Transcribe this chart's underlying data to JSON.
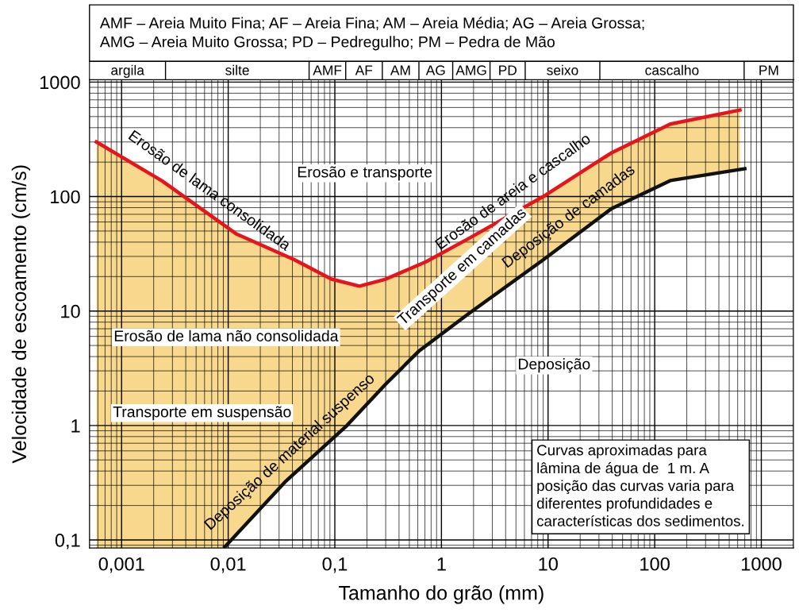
{
  "chart_data": {
    "type": "area",
    "title": "AMF – Areia Muito Fina; AF – Areia Fina; AM – Areia Média; AG – Areia Grossa;\nAMG – Areia Muito Grossa; PD – Pedregulho; PM – Pedra de Mão",
    "xlabel": "Tamanho do grão (mm)",
    "ylabel": "Velocidade de escoamento (cm/s)",
    "log": "xy",
    "grid": true,
    "marker": "none",
    "line_style": "solid",
    "xlim": [
      0.0005,
      2000
    ],
    "ylim": [
      0.085,
      1050
    ],
    "xticks": [
      {
        "value": 0.001,
        "label": "0,001"
      },
      {
        "value": 0.01,
        "label": "0,01"
      },
      {
        "value": 0.1,
        "label": "0,1"
      },
      1,
      10,
      100,
      1000
    ],
    "yticks": [
      {
        "value": 0.1,
        "label": "0,1"
      },
      1,
      10,
      100,
      1000
    ],
    "series": [
      {
        "color": "#e8141c",
        "x": [
          0.00058,
          0.0024,
          0.012,
          0.042,
          0.093,
          0.17,
          0.3,
          0.72,
          1.8,
          9,
          39,
          140,
          630
        ],
        "values": [
          300,
          137,
          47,
          28,
          19,
          16.5,
          19,
          27,
          43,
          100,
          240,
          430,
          570
        ]
      },
      {
        "color": "#111111",
        "x": [
          0.0093,
          0.034,
          0.13,
          0.3,
          0.62,
          1.8,
          9,
          39,
          140,
          700
        ],
        "values": [
          0.087,
          0.32,
          1,
          2.3,
          4.5,
          9.5,
          28,
          78,
          138,
          175
        ]
      }
    ],
    "annotations": [
      "argila",
      "silte",
      "AMF",
      "AF",
      "AM",
      "AG",
      "AMG",
      "PD",
      "seixo",
      "cascalho",
      "PM",
      {
        "text": "Erosão de lama consolidada",
        "x": 0.0052,
        "y": 82
      },
      {
        "text": "Erosão de areia e cascalho",
        "x": 6,
        "y": 80
      },
      {
        "text": "Deposição de camadas",
        "x": 20,
        "y": 49
      },
      {
        "text": "Deposição de material suspenso",
        "x": 0.05,
        "y": 0.44
      },
      "Erosão e transporte",
      "Transporte em camadas",
      "Erosão de lama não consolidada",
      "Transporte em suspensão",
      "Deposição",
      "Curvas aproximadas para\nlâmina de água de  1 m. A\nposição das curvas varia para\ndiferentes profundidades e\ncaracterísticas dos sedimentos."
    ]
  }
}
